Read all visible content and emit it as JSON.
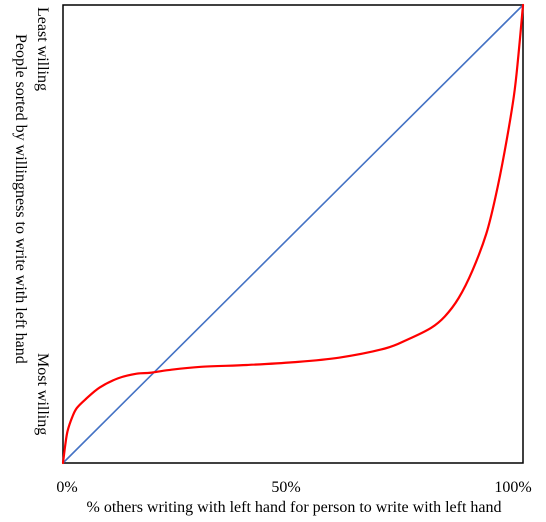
{
  "chart_data": {
    "type": "line",
    "title": "",
    "xlabel": "% others writing with left hand for person to write with left hand",
    "ylabel": "People sorted by willingness to write with left hand",
    "y_top_label": "Least willing",
    "y_bottom_label": "Most willing",
    "x_ticks": [
      "0%",
      "50%",
      "100%"
    ],
    "xlim": [
      0,
      100
    ],
    "ylim": [
      0,
      100
    ],
    "grid": false,
    "series": [
      {
        "color": "#4472C4",
        "x": [
          0,
          100
        ],
        "y": [
          0,
          100
        ]
      },
      {
        "color": "#FF0000",
        "x": [
          0,
          0.5,
          1,
          2,
          3,
          5,
          8,
          12,
          16,
          19,
          23,
          30,
          40,
          50,
          60,
          70,
          75,
          80,
          83,
          86,
          89,
          92,
          94,
          96,
          98,
          99,
          100
        ],
        "y": [
          0,
          4,
          7,
          10,
          12,
          14,
          16.5,
          18.5,
          19.5,
          19.7,
          20.3,
          21,
          21.4,
          22,
          23,
          25,
          27,
          29.5,
          32,
          36,
          42,
          50,
          58,
          68,
          80,
          89,
          100
        ]
      }
    ]
  }
}
